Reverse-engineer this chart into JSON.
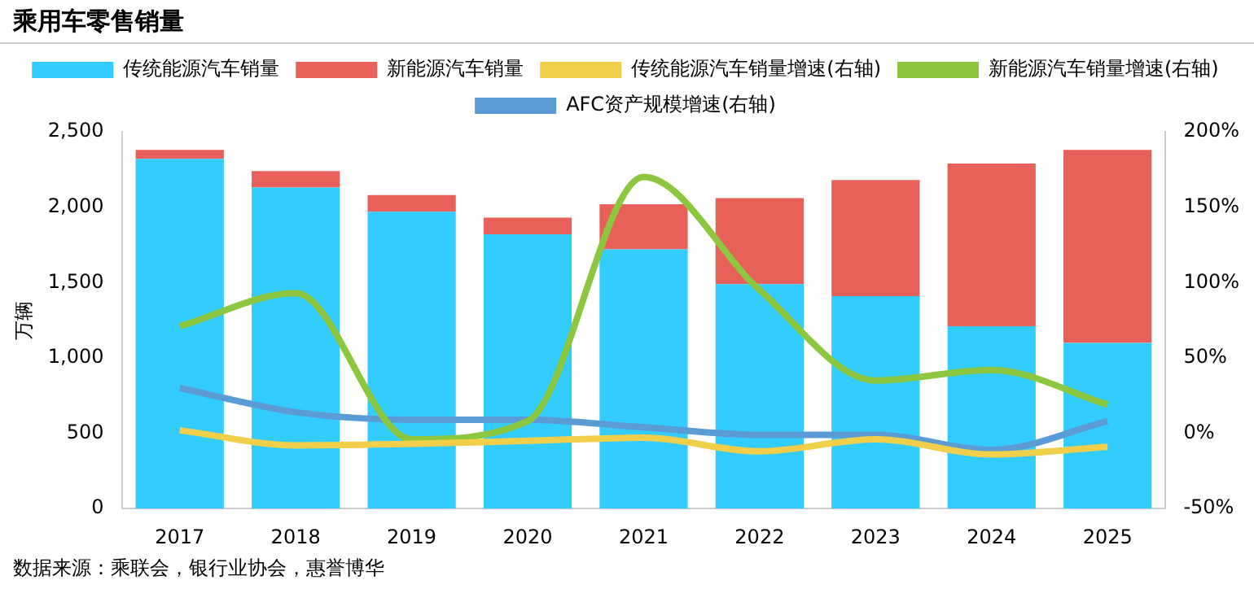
{
  "chart_data": {
    "type": "bar",
    "title": "乘用车零售销量",
    "ylabel": "万辆",
    "stacked": true,
    "legend": "top",
    "grid": false,
    "categories": [
      "2017",
      "2018",
      "2019",
      "2020",
      "2021",
      "2022",
      "2023",
      "2024",
      "2025"
    ],
    "series": [
      {
        "name": "传统能源汽车销量",
        "color": "#33ccff",
        "values": [
          2320,
          2130,
          1970,
          1820,
          1720,
          1490,
          1410,
          1210,
          1100
        ]
      },
      {
        "name": "新能源汽车销量",
        "color": "#e8605a",
        "values": [
          60,
          110,
          110,
          110,
          300,
          570,
          770,
          1080,
          1280
        ]
      },
      {
        "name": "传统能源汽车销量增速(右轴)",
        "type": "line",
        "axis": "y2",
        "color": "#f2cf4a",
        "values": [
          2,
          -8,
          -7,
          -5,
          -3,
          -12,
          -4,
          -14,
          -9
        ]
      },
      {
        "name": "新能源汽车销量增速(右轴)",
        "type": "line",
        "axis": "y2",
        "color": "#8dc63f",
        "values": [
          71,
          93,
          -4,
          8,
          170,
          95,
          35,
          42,
          19
        ]
      },
      {
        "name": "AFC资产规模增速(右轴)",
        "type": "line",
        "axis": "y2",
        "color": "#5b9bd5",
        "values": [
          30,
          14,
          9,
          9,
          4,
          -1,
          -1,
          -11,
          8
        ]
      }
    ],
    "ylim": [
      0,
      2500
    ],
    "yticks": [
      {
        "value": 0,
        "label": "0"
      },
      {
        "value": 500,
        "label": "500"
      },
      {
        "value": 1000,
        "label": "1,000"
      },
      {
        "value": 1500,
        "label": "1,500"
      },
      {
        "value": 2000,
        "label": "2,000"
      },
      {
        "value": 2500,
        "label": "2,500"
      }
    ],
    "y2lim": [
      -50,
      200
    ],
    "y2ticks": [
      {
        "value": -50,
        "label": "-50%"
      },
      {
        "value": 0,
        "label": "0%"
      },
      {
        "value": 50,
        "label": "50%"
      },
      {
        "value": 100,
        "label": "100%"
      },
      {
        "value": 150,
        "label": "150%"
      },
      {
        "value": 200,
        "label": "200%"
      }
    ],
    "annotations": [
      "数据来源：乘联会，银行业协会，惠誉博华"
    ]
  }
}
